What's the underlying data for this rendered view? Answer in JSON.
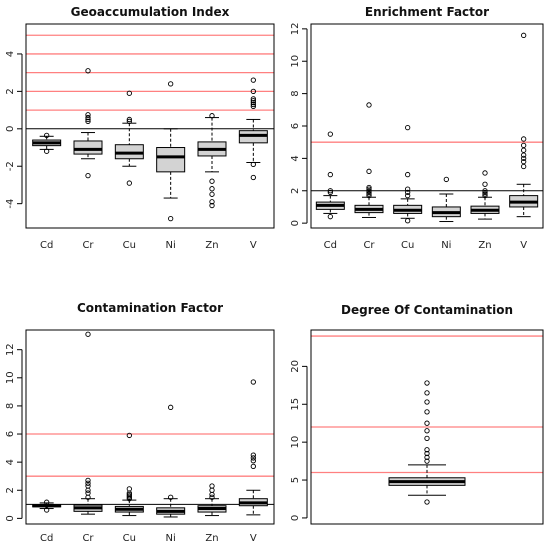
{
  "chart_data": [
    {
      "type": "boxplot",
      "title": "Geoaccumulation Index",
      "xlabel": "",
      "ylabel": "",
      "categories": [
        "Cd",
        "Cr",
        "Cu",
        "Ni",
        "Zn",
        "V"
      ],
      "ylim": [
        -5.3,
        5.6
      ],
      "yticks": [
        -4,
        -2,
        0,
        2,
        4
      ],
      "reference_lines": [
        {
          "y": 0,
          "color": "#000000"
        }
      ],
      "threshold_lines": [
        {
          "y": 1,
          "color": "#ff8080"
        },
        {
          "y": 2,
          "color": "#ff8080"
        },
        {
          "y": 3,
          "color": "#ff8080"
        },
        {
          "y": 4,
          "color": "#ff8080"
        },
        {
          "y": 5,
          "color": "#ff8080"
        }
      ],
      "boxes": [
        {
          "category": "Cd",
          "whisker_low": -1.1,
          "q1": -0.9,
          "median": -0.75,
          "q3": -0.6,
          "whisker_high": -0.4,
          "outliers": [
            -1.2,
            -0.35
          ]
        },
        {
          "category": "Cr",
          "whisker_low": -1.6,
          "q1": -1.35,
          "median": -1.1,
          "q3": -0.65,
          "whisker_high": -0.2,
          "outliers": [
            -2.5,
            3.1,
            0.75,
            0.6,
            0.5,
            0.4
          ]
        },
        {
          "category": "Cu",
          "whisker_low": -2.0,
          "q1": -1.6,
          "median": -1.3,
          "q3": -0.85,
          "whisker_high": 0.3,
          "outliers": [
            -2.9,
            1.9,
            0.5,
            0.4
          ]
        },
        {
          "category": "Ni",
          "whisker_low": -3.7,
          "q1": -2.3,
          "median": -1.5,
          "q3": -1.0,
          "whisker_high": 0.0,
          "outliers": [
            -4.8,
            2.4
          ]
        },
        {
          "category": "Zn",
          "whisker_low": -2.3,
          "q1": -1.45,
          "median": -1.1,
          "q3": -0.7,
          "whisker_high": 0.6,
          "outliers": [
            -2.8,
            -3.2,
            -3.5,
            -3.9,
            -4.1,
            0.7
          ]
        },
        {
          "category": "V",
          "whisker_low": -1.8,
          "q1": -0.75,
          "median": -0.35,
          "q3": -0.1,
          "whisker_high": 0.5,
          "outliers": [
            -2.6,
            -1.9,
            1.2,
            1.3,
            1.4,
            1.5,
            1.6,
            2.0,
            2.6
          ]
        }
      ]
    },
    {
      "type": "boxplot",
      "title": "Enrichment Factor",
      "xlabel": "",
      "ylabel": "",
      "categories": [
        "Cd",
        "Cr",
        "Cu",
        "Ni",
        "Zn",
        "V"
      ],
      "ylim": [
        -0.3,
        12.3
      ],
      "yticks": [
        0,
        2,
        4,
        6,
        8,
        10,
        12
      ],
      "reference_lines": [
        {
          "y": 2,
          "color": "#000000"
        }
      ],
      "threshold_lines": [
        {
          "y": 5,
          "color": "#ff8080"
        }
      ],
      "boxes": [
        {
          "category": "Cd",
          "whisker_low": 0.6,
          "q1": 0.85,
          "median": 1.1,
          "q3": 1.3,
          "whisker_high": 1.7,
          "outliers": [
            0.4,
            1.9,
            2.0,
            3.0,
            5.5
          ]
        },
        {
          "category": "Cr",
          "whisker_low": 0.35,
          "q1": 0.65,
          "median": 0.85,
          "q3": 1.1,
          "whisker_high": 1.6,
          "outliers": [
            1.7,
            1.8,
            1.9,
            2.0,
            2.1,
            2.2,
            3.2,
            7.3
          ]
        },
        {
          "category": "Cu",
          "whisker_low": 0.3,
          "q1": 0.6,
          "median": 0.8,
          "q3": 1.1,
          "whisker_high": 1.5,
          "outliers": [
            0.15,
            1.7,
            1.9,
            2.1,
            3.0,
            5.9
          ]
        },
        {
          "category": "Ni",
          "whisker_low": 0.1,
          "q1": 0.4,
          "median": 0.65,
          "q3": 1.0,
          "whisker_high": 1.8,
          "outliers": [
            2.7
          ]
        },
        {
          "category": "Zn",
          "whisker_low": 0.25,
          "q1": 0.6,
          "median": 0.8,
          "q3": 1.05,
          "whisker_high": 1.6,
          "outliers": [
            1.7,
            1.8,
            1.9,
            2.0,
            2.4,
            3.1
          ]
        },
        {
          "category": "V",
          "whisker_low": 0.4,
          "q1": 1.0,
          "median": 1.3,
          "q3": 1.7,
          "whisker_high": 2.4,
          "outliers": [
            3.5,
            3.8,
            4.0,
            4.2,
            4.5,
            4.8,
            5.2,
            11.6
          ]
        }
      ]
    },
    {
      "type": "boxplot",
      "title": "Contamination Factor",
      "xlabel": "",
      "ylabel": "",
      "categories": [
        "Cd",
        "Cr",
        "Cu",
        "Ni",
        "Zn",
        "V"
      ],
      "ylim": [
        -0.4,
        13.4
      ],
      "yticks": [
        0,
        2,
        4,
        6,
        8,
        10,
        12
      ],
      "reference_lines": [
        {
          "y": 1,
          "color": "#000000"
        }
      ],
      "threshold_lines": [
        {
          "y": 3,
          "color": "#ff8080"
        },
        {
          "y": 6,
          "color": "#ff8080"
        }
      ],
      "boxes": [
        {
          "category": "Cd",
          "whisker_low": 0.7,
          "q1": 0.82,
          "median": 0.9,
          "q3": 0.98,
          "whisker_high": 1.1,
          "outliers": [
            0.6,
            1.15
          ]
        },
        {
          "category": "Cr",
          "whisker_low": 0.3,
          "q1": 0.5,
          "median": 0.75,
          "q3": 0.95,
          "whisker_high": 1.4,
          "outliers": [
            1.5,
            1.8,
            2.0,
            2.3,
            2.5,
            2.7,
            13.1
          ]
        },
        {
          "category": "Cu",
          "whisker_low": 0.2,
          "q1": 0.45,
          "median": 0.65,
          "q3": 0.85,
          "whisker_high": 1.3,
          "outliers": [
            1.4,
            1.5,
            1.6,
            1.7,
            1.8,
            2.1,
            5.9
          ]
        },
        {
          "category": "Ni",
          "whisker_low": 0.1,
          "q1": 0.3,
          "median": 0.5,
          "q3": 0.75,
          "whisker_high": 1.4,
          "outliers": [
            1.5,
            7.9
          ]
        },
        {
          "category": "Zn",
          "whisker_low": 0.2,
          "q1": 0.45,
          "median": 0.7,
          "q3": 0.9,
          "whisker_high": 1.4,
          "outliers": [
            1.5,
            1.7,
            2.0,
            2.3
          ]
        },
        {
          "category": "V",
          "whisker_low": 0.25,
          "q1": 0.9,
          "median": 1.1,
          "q3": 1.4,
          "whisker_high": 2.0,
          "outliers": [
            3.7,
            4.1,
            4.3,
            4.5,
            9.7
          ]
        }
      ]
    },
    {
      "type": "boxplot",
      "title": "Degree Of Contamination",
      "xlabel": "",
      "ylabel": "",
      "categories": [
        ""
      ],
      "ylim": [
        -0.8,
        24.8
      ],
      "yticks": [
        0,
        5,
        10,
        15,
        20
      ],
      "reference_lines": [],
      "threshold_lines": [
        {
          "y": 6,
          "color": "#ff8080"
        },
        {
          "y": 12,
          "color": "#ff8080"
        },
        {
          "y": 24,
          "color": "#ff8080"
        }
      ],
      "boxes": [
        {
          "category": "",
          "whisker_low": 3.0,
          "q1": 4.3,
          "median": 4.8,
          "q3": 5.3,
          "whisker_high": 7.0,
          "outliers": [
            2.1,
            7.5,
            8.0,
            8.5,
            9.0,
            10.5,
            11.5,
            12.5,
            14.0,
            15.3,
            16.5,
            17.8
          ]
        }
      ]
    }
  ]
}
